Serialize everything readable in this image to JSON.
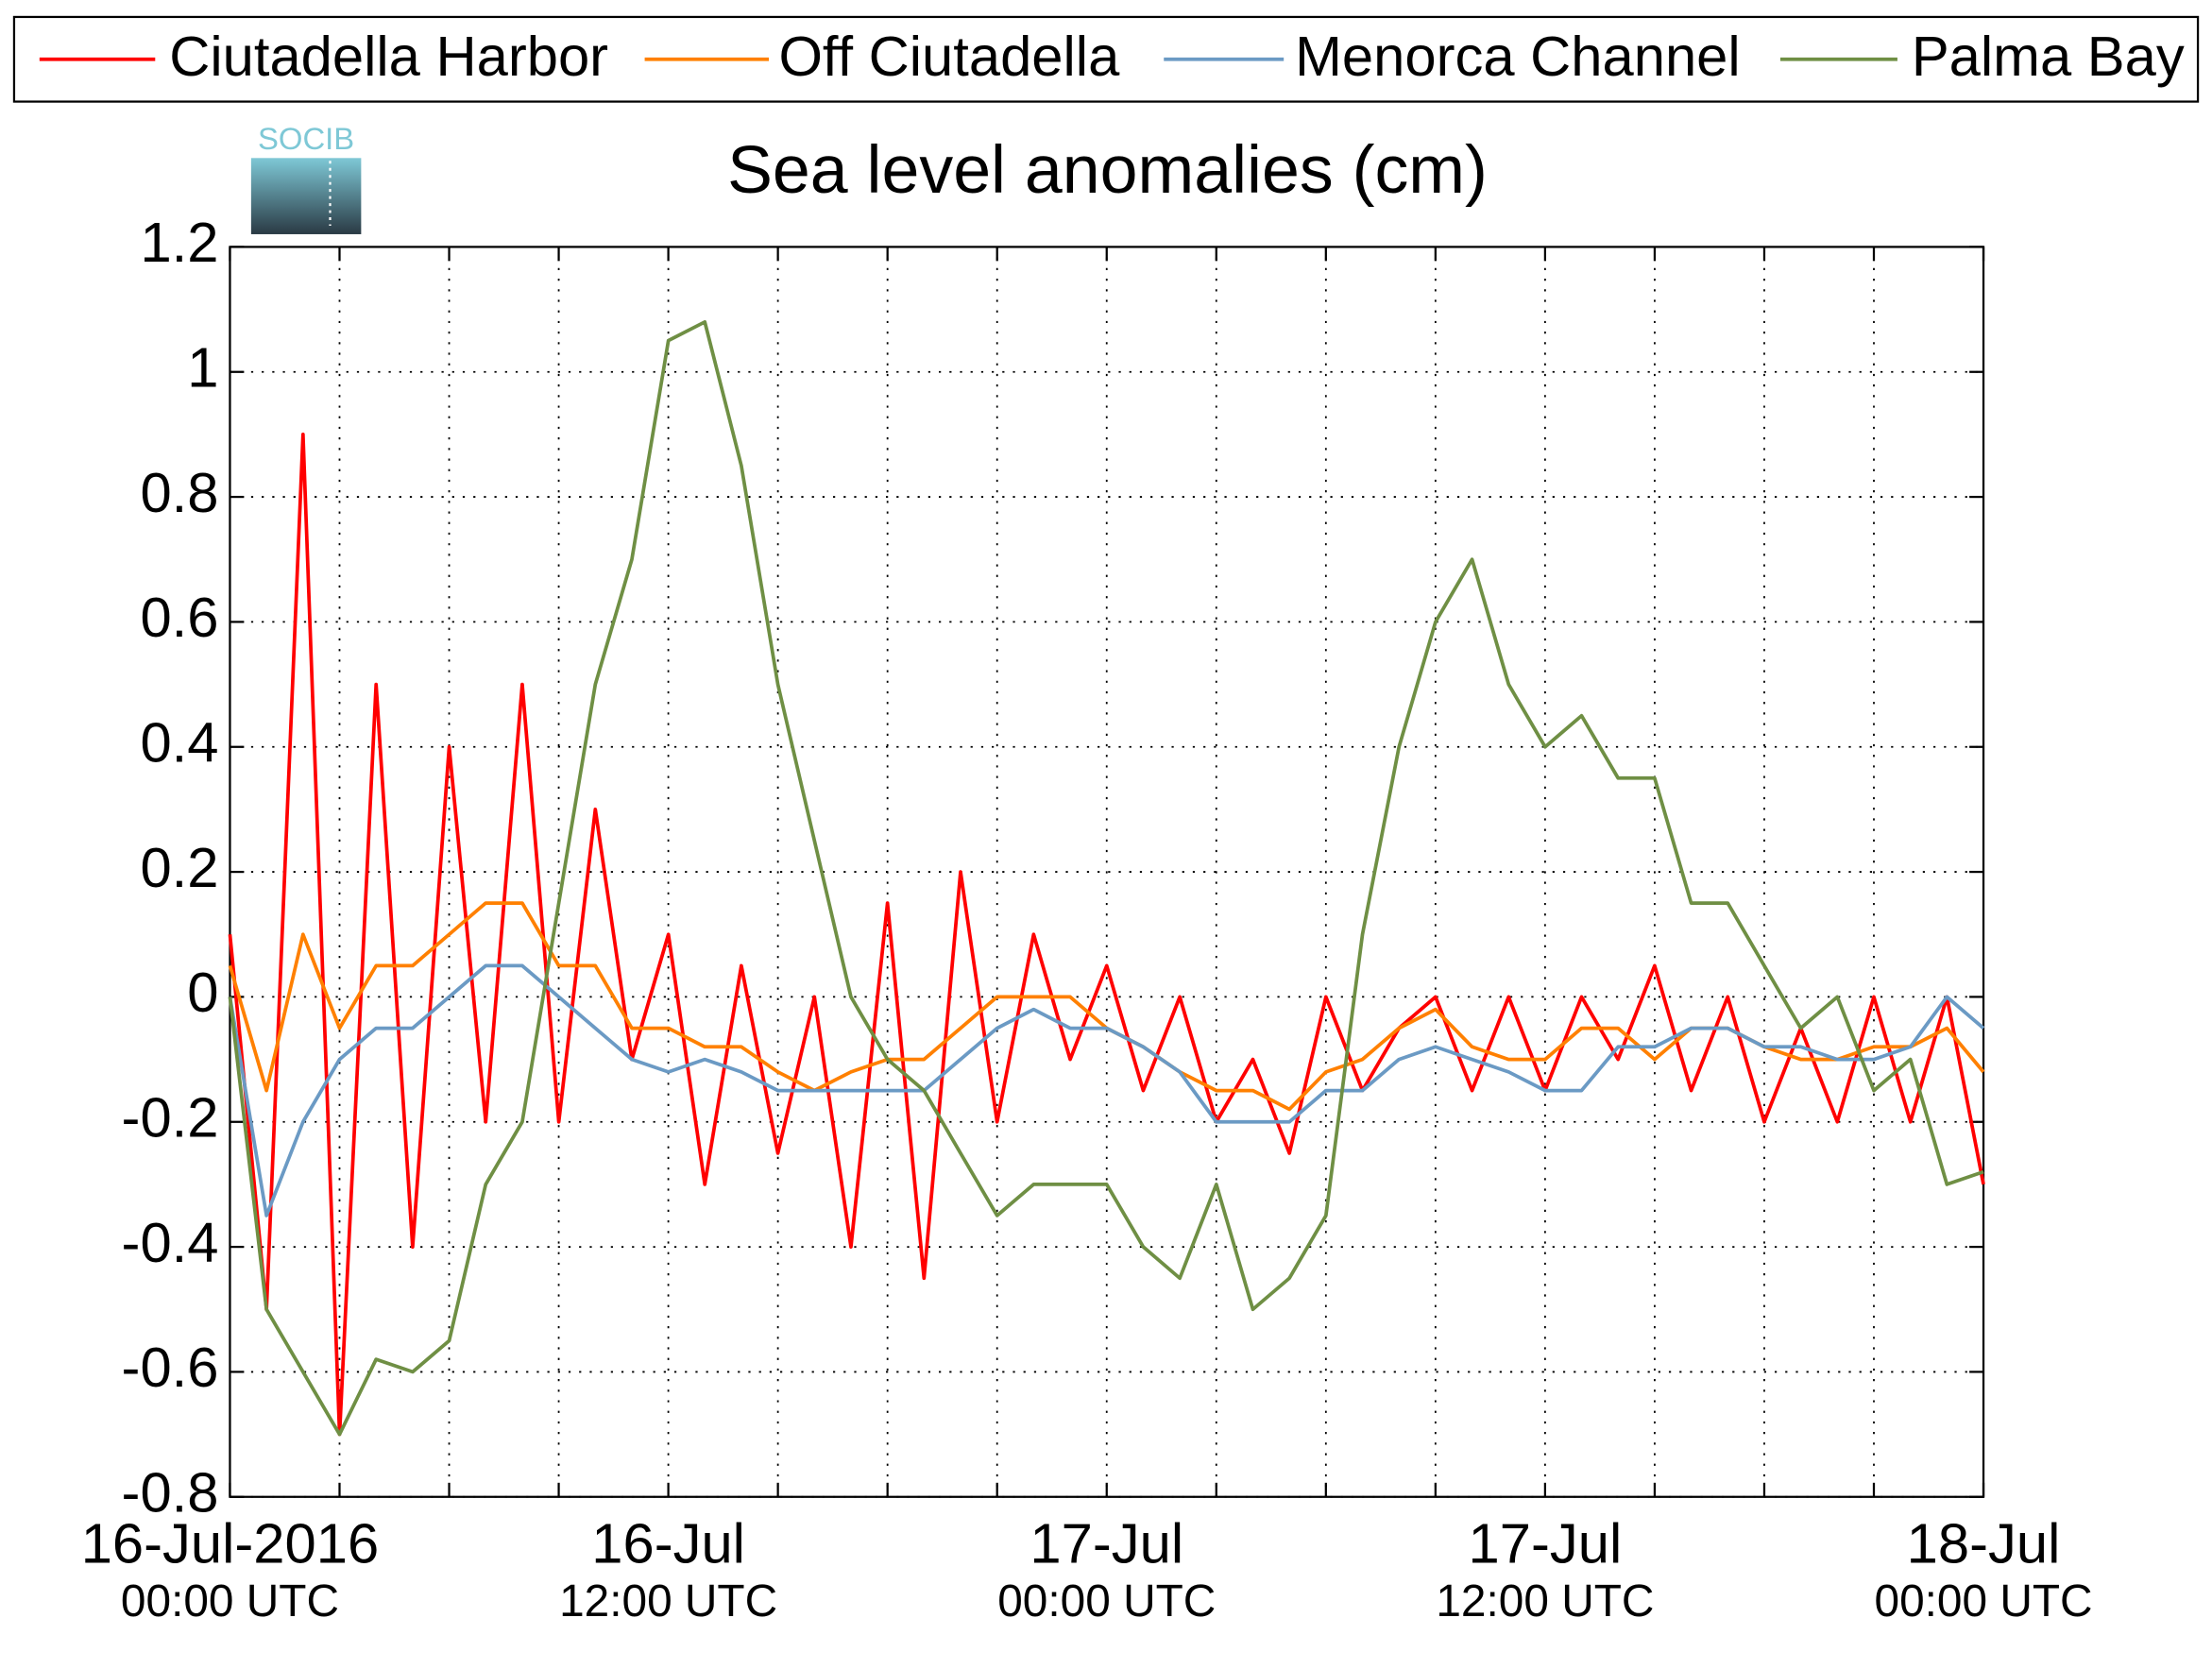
{
  "chart_data": {
    "type": "line",
    "title": "Sea level anomalies (cm)",
    "logo_text": "SOCIB",
    "x": [
      0,
      1,
      2,
      3,
      4,
      5,
      6,
      7,
      8,
      9,
      10,
      11,
      12,
      13,
      14,
      15,
      16,
      17,
      18,
      19,
      20,
      21,
      22,
      23,
      24,
      25,
      26,
      27,
      28,
      29,
      30,
      31,
      32,
      33,
      34,
      35,
      36,
      37,
      38,
      39,
      40,
      41,
      42,
      43,
      44,
      45,
      46,
      47,
      48
    ],
    "xlim": [
      0,
      48
    ],
    "xticks": [
      {
        "value": 0,
        "label": [
          "16-Jul-2016",
          "00:00 UTC"
        ]
      },
      {
        "value": 12,
        "label": [
          "16-Jul",
          "12:00 UTC"
        ]
      },
      {
        "value": 24,
        "label": [
          "17-Jul",
          "00:00 UTC"
        ]
      },
      {
        "value": 36,
        "label": [
          "17-Jul",
          "12:00 UTC"
        ]
      },
      {
        "value": 48,
        "label": [
          "18-Jul",
          "00:00 UTC"
        ]
      }
    ],
    "xminorticks": [
      3,
      6,
      9,
      15,
      18,
      21,
      27,
      30,
      33,
      39,
      42,
      45
    ],
    "ylim": [
      -0.8,
      1.2
    ],
    "yticks": [
      -0.8,
      -0.6,
      -0.4,
      -0.2,
      0,
      0.2,
      0.4,
      0.6,
      0.8,
      1,
      1.2
    ],
    "grid": true,
    "legend": "top",
    "series": [
      {
        "name": "Ciutadella Harbor",
        "color": "#ff0000",
        "values": [
          0.1,
          -0.5,
          0.9,
          -0.7,
          0.5,
          -0.4,
          0.4,
          -0.2,
          0.5,
          -0.2,
          0.3,
          -0.1,
          0.1,
          -0.3,
          0.05,
          -0.25,
          0,
          -0.4,
          0.15,
          -0.45,
          0.2,
          -0.2,
          0.1,
          -0.1,
          0.05,
          -0.15,
          0,
          -0.2,
          -0.1,
          -0.25,
          0,
          -0.15,
          -0.05,
          0,
          -0.15,
          0,
          -0.15,
          0,
          -0.1,
          0.05,
          -0.15,
          0,
          -0.2,
          -0.05,
          -0.2,
          0,
          -0.2,
          0,
          -0.3
        ]
      },
      {
        "name": "Off Ciutadella",
        "color": "#ff8000",
        "values": [
          0.05,
          -0.15,
          0.1,
          -0.05,
          0.05,
          0.05,
          0.1,
          0.15,
          0.15,
          0.05,
          0.05,
          -0.05,
          -0.05,
          -0.08,
          -0.08,
          -0.12,
          -0.15,
          -0.12,
          -0.1,
          -0.1,
          -0.05,
          0,
          0,
          0,
          -0.05,
          -0.08,
          -0.12,
          -0.15,
          -0.15,
          -0.18,
          -0.12,
          -0.1,
          -0.05,
          -0.02,
          -0.08,
          -0.1,
          -0.1,
          -0.05,
          -0.05,
          -0.1,
          -0.05,
          -0.05,
          -0.08,
          -0.1,
          -0.1,
          -0.08,
          -0.08,
          -0.05,
          -0.12
        ]
      },
      {
        "name": "Menorca Channel",
        "color": "#6b9ac4",
        "values": [
          0,
          -0.35,
          -0.2,
          -0.1,
          -0.05,
          -0.05,
          0,
          0.05,
          0.05,
          0,
          -0.05,
          -0.1,
          -0.12,
          -0.1,
          -0.12,
          -0.15,
          -0.15,
          -0.15,
          -0.15,
          -0.15,
          -0.1,
          -0.05,
          -0.02,
          -0.05,
          -0.05,
          -0.08,
          -0.12,
          -0.2,
          -0.2,
          -0.2,
          -0.15,
          -0.15,
          -0.1,
          -0.08,
          -0.1,
          -0.12,
          -0.15,
          -0.15,
          -0.08,
          -0.08,
          -0.05,
          -0.05,
          -0.08,
          -0.08,
          -0.1,
          -0.1,
          -0.08,
          0,
          -0.05
        ]
      },
      {
        "name": "Palma Bay",
        "color": "#6f8f44",
        "values": [
          0,
          -0.5,
          -0.6,
          -0.7,
          -0.58,
          -0.6,
          -0.55,
          -0.3,
          -0.2,
          0.15,
          0.5,
          0.7,
          1.05,
          1.08,
          0.85,
          0.5,
          0.25,
          0,
          -0.1,
          -0.15,
          -0.25,
          -0.35,
          -0.3,
          -0.3,
          -0.3,
          -0.4,
          -0.45,
          -0.3,
          -0.5,
          -0.45,
          -0.35,
          0.1,
          0.4,
          0.6,
          0.7,
          0.5,
          0.4,
          0.45,
          0.35,
          0.35,
          0.15,
          0.15,
          0.05,
          -0.05,
          0,
          -0.15,
          -0.1,
          -0.3,
          -0.28
        ]
      }
    ]
  }
}
